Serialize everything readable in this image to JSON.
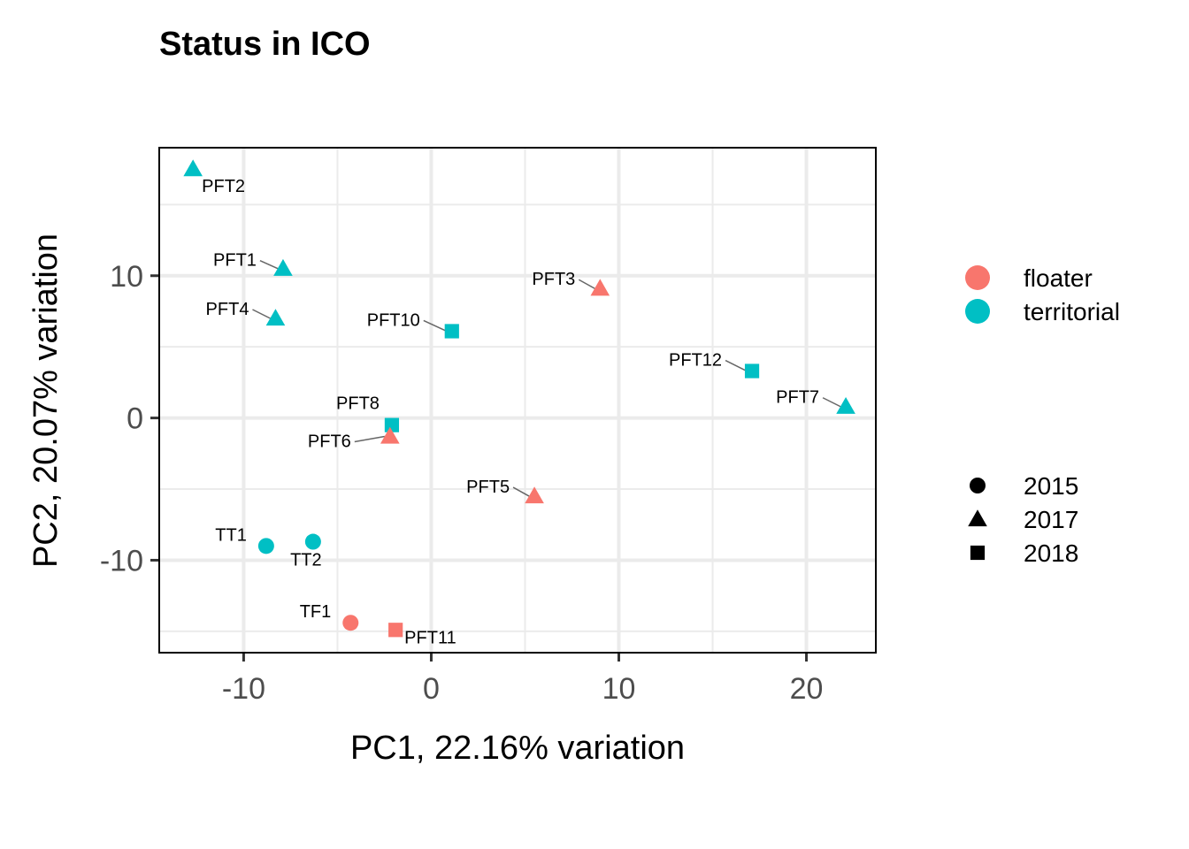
{
  "chart_data": {
    "type": "scatter",
    "title": "Status in ICO",
    "xlabel": "PC1, 22.16% variation",
    "ylabel": "PC2, 20.07% variation",
    "xlim": [
      -14.5,
      23.7
    ],
    "ylim": [
      -16.5,
      19
    ],
    "x_ticks": [
      -10,
      0,
      10,
      20
    ],
    "y_ticks": [
      -10,
      0,
      10
    ],
    "x_tick_labels": [
      "-10",
      "0",
      "10",
      "20"
    ],
    "y_tick_labels": [
      "-10",
      "0",
      "10"
    ],
    "grid": true,
    "legend_position": "right",
    "colors": {
      "floater": "#F8766D",
      "territorial": "#00BFC4"
    },
    "color_legend": [
      "floater",
      "territorial"
    ],
    "shape_legend": [
      {
        "label": "2015",
        "shape": "circle"
      },
      {
        "label": "2017",
        "shape": "triangle"
      },
      {
        "label": "2018",
        "shape": "square"
      }
    ],
    "points": [
      {
        "label": "PFT2",
        "x": -12.7,
        "y": 17.5,
        "status": "territorial",
        "year": "2017"
      },
      {
        "label": "PFT1",
        "x": -7.9,
        "y": 10.5,
        "status": "territorial",
        "year": "2017"
      },
      {
        "label": "PFT4",
        "x": -8.3,
        "y": 7.0,
        "status": "territorial",
        "year": "2017"
      },
      {
        "label": "PFT10",
        "x": 1.1,
        "y": 6.1,
        "status": "territorial",
        "year": "2018"
      },
      {
        "label": "PFT3",
        "x": 9.0,
        "y": 9.1,
        "status": "floater",
        "year": "2017"
      },
      {
        "label": "PFT12",
        "x": 17.1,
        "y": 3.3,
        "status": "territorial",
        "year": "2018"
      },
      {
        "label": "PFT7",
        "x": 22.1,
        "y": 0.8,
        "status": "territorial",
        "year": "2017"
      },
      {
        "label": "PFT8",
        "x": -2.1,
        "y": -0.5,
        "status": "territorial",
        "year": "2018"
      },
      {
        "label": "PFT6",
        "x": -2.2,
        "y": -1.3,
        "status": "floater",
        "year": "2017"
      },
      {
        "label": "PFT5",
        "x": 5.5,
        "y": -5.5,
        "status": "floater",
        "year": "2017"
      },
      {
        "label": "TT1",
        "x": -8.8,
        "y": -9.0,
        "status": "territorial",
        "year": "2015"
      },
      {
        "label": "TT2",
        "x": -6.3,
        "y": -8.7,
        "status": "territorial",
        "year": "2015"
      },
      {
        "label": "TF1",
        "x": -4.3,
        "y": -14.4,
        "status": "floater",
        "year": "2015"
      },
      {
        "label": "PFT11",
        "x": -1.9,
        "y": -14.9,
        "status": "floater",
        "year": "2018"
      }
    ]
  }
}
